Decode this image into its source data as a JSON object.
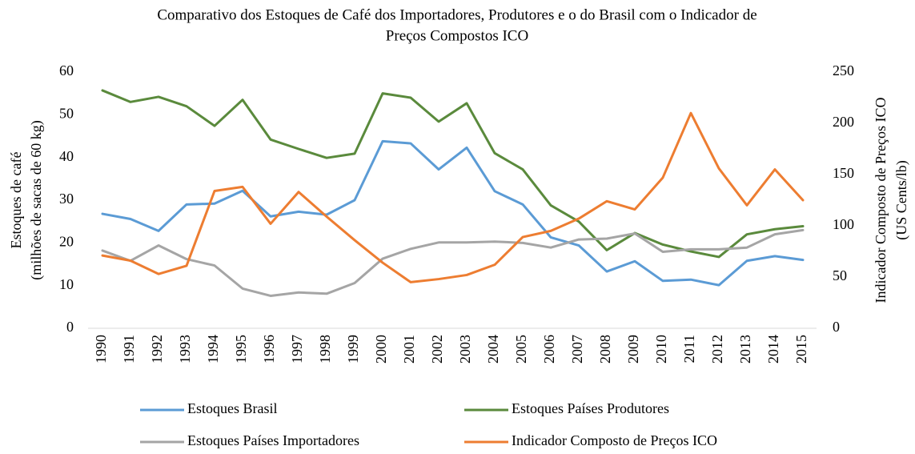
{
  "chart_data": {
    "type": "line",
    "title": [
      "Comparativo dos Estoques de Café dos Importadores, Produtores e o do Brasil com o Indicador de",
      "Preços Compostos ICO"
    ],
    "ylabel": [
      "Estoques de café",
      "(milhões de sacas de 60 kg)"
    ],
    "y2label": [
      "Indicador Composto de Preços ICO",
      "(US Cents/lb)"
    ],
    "categories": [
      "1990",
      "1991",
      "1992",
      "1993",
      "1994",
      "1995",
      "1996",
      "1997",
      "1998",
      "1999",
      "2000",
      "2001",
      "2002",
      "2003",
      "2004",
      "2005",
      "2006",
      "2007",
      "2008",
      "2009",
      "2010",
      "2011",
      "2012",
      "2013",
      "2014",
      "2015"
    ],
    "series": [
      {
        "name": "Estoques Brasil",
        "color": "#5b9bd5",
        "values": [
          26.8,
          25.6,
          22.8,
          29.0,
          29.2,
          32.2,
          26.2,
          27.3,
          26.6,
          30.0,
          43.8,
          43.3,
          37.2,
          42.3,
          32.1,
          29.0,
          21.3,
          19.4,
          13.3,
          15.7,
          11.1,
          11.4,
          10.1,
          15.8,
          16.9,
          16.0
        ]
      },
      {
        "name": "Estoques Países Produtores",
        "color": "#5a8a3c",
        "values": [
          55.7,
          53.0,
          54.2,
          52.0,
          47.4,
          53.5,
          44.2,
          42.0,
          39.9,
          40.9,
          55.0,
          54.0,
          48.4,
          52.7,
          41.0,
          37.2,
          28.8,
          25.0,
          18.3,
          22.3,
          19.6,
          18.0,
          16.7,
          22.0,
          23.2,
          23.9
        ]
      },
      {
        "name": "Estoques Países Importadores",
        "color": "#a5a5a5",
        "values": [
          18.2,
          15.8,
          19.4,
          16.2,
          14.7,
          9.3,
          7.6,
          8.4,
          8.1,
          10.6,
          16.3,
          18.6,
          20.1,
          20.1,
          20.3,
          20.0,
          18.9,
          20.8,
          21.0,
          22.2,
          17.9,
          18.5,
          18.5,
          18.9,
          22.0,
          23.0
        ]
      },
      {
        "name": "Indicador Composto de Preços ICO",
        "color": "#ed7d31",
        "axis": "y2",
        "values": [
          71,
          66,
          53,
          61,
          134,
          138,
          102,
          133,
          109,
          86,
          64,
          45,
          48,
          52,
          62,
          89,
          95,
          107,
          124,
          116,
          147,
          210,
          156,
          120,
          155,
          125
        ]
      }
    ],
    "ylim": [
      0,
      60
    ],
    "yticks": [
      0,
      10,
      20,
      30,
      40,
      50,
      60
    ],
    "y2lim": [
      0,
      250
    ],
    "y2ticks": [
      0,
      50,
      100,
      150,
      200,
      250
    ],
    "grid": false
  }
}
